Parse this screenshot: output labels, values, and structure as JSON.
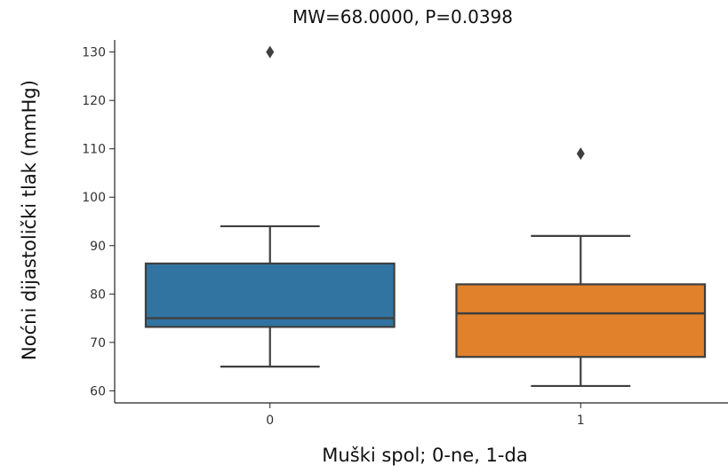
{
  "chart_data": {
    "type": "box",
    "title": "MW=68.0000, P=0.0398",
    "xlabel": "Muški spol; 0-ne, 1-da",
    "ylabel": "Noćni dijastolički tlak (mmHg)",
    "categories": [
      "0",
      "1"
    ],
    "ylim": [
      57.5,
      132.5
    ],
    "yticks": [
      60,
      70,
      80,
      90,
      100,
      110,
      120,
      130
    ],
    "grid": false,
    "colors": [
      "#3274a1",
      "#e1812c"
    ],
    "edge_color": "#3f3f3f",
    "boxes": [
      {
        "category": "0",
        "whisker_low": 65,
        "q1": 73.2,
        "median": 75,
        "q3": 86.3,
        "whisker_high": 94,
        "outliers": [
          130
        ]
      },
      {
        "category": "1",
        "whisker_low": 61,
        "q1": 67,
        "median": 76,
        "q3": 82,
        "whisker_high": 92,
        "outliers": [
          109
        ]
      }
    ]
  }
}
